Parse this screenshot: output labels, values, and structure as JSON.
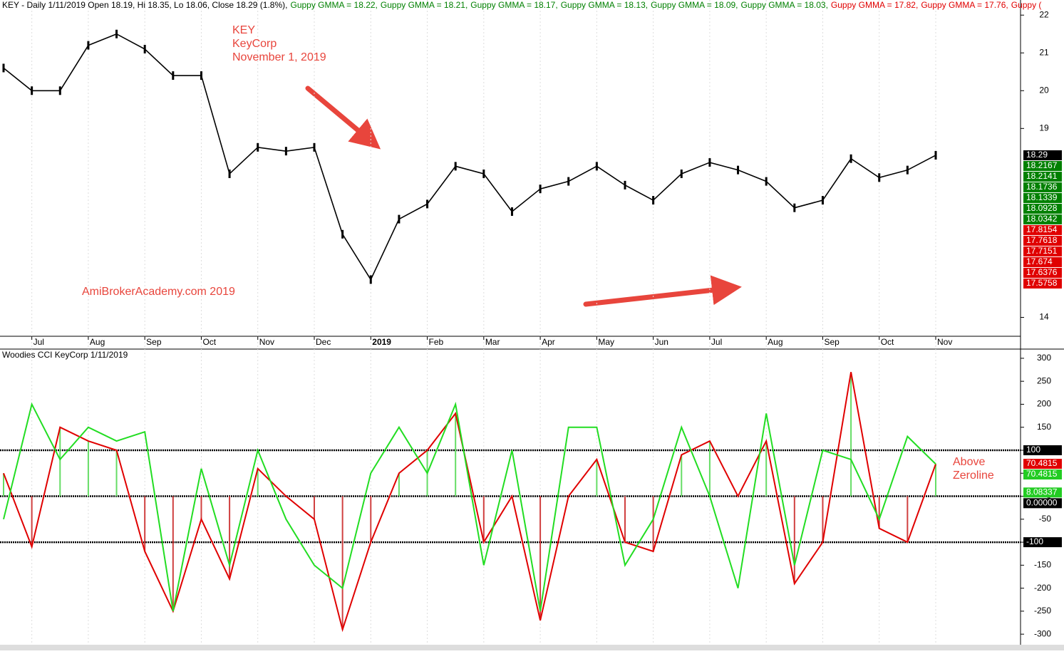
{
  "chart_data": [
    {
      "type": "line",
      "title": "KEY - Daily 1/11/2019 Open 18.19, Hi 18.35, Lo 18.06, Close 18.29 (1.8%),",
      "header_items": [
        {
          "text": "Guppy GMMA = 18.22,",
          "color": "#008000"
        },
        {
          "text": "Guppy GMMA = 18.21,",
          "color": "#008000"
        },
        {
          "text": "Guppy GMMA = 18.17,",
          "color": "#008000"
        },
        {
          "text": "Guppy GMMA = 18.13,",
          "color": "#008000"
        },
        {
          "text": "Guppy GMMA = 18.09,",
          "color": "#008000"
        },
        {
          "text": "Guppy GMMA = 18.03,",
          "color": "#008000"
        },
        {
          "text": "Guppy GMMA = 17.82,",
          "color": "#e00000"
        },
        {
          "text": "Guppy GMMA = 17.76,",
          "color": "#e00000"
        },
        {
          "text": "Guppy (",
          "color": "#e00000"
        }
      ],
      "annotations": [
        "KEY",
        "KeyCorp",
        "November 1, 2019",
        "AmiBrokerAcademy.com   2019"
      ],
      "categories": [
        null,
        "Jul",
        null,
        "Aug",
        null,
        "Sep",
        null,
        "Oct",
        null,
        "Nov",
        null,
        "Dec",
        null,
        "2019",
        null,
        "Feb",
        null,
        "Mar",
        null,
        "Apr",
        null,
        "May",
        null,
        "Jun",
        null,
        "Jul",
        null,
        "Aug",
        null,
        "Sep",
        null,
        "Oct",
        null,
        "Nov"
      ],
      "values": [
        20.6,
        20.0,
        20.0,
        21.2,
        21.5,
        21.1,
        20.4,
        20.4,
        17.8,
        18.5,
        18.4,
        18.5,
        16.2,
        15.0,
        16.6,
        17.0,
        18.0,
        17.8,
        16.8,
        17.4,
        17.6,
        18.0,
        17.5,
        17.1,
        17.8,
        18.1,
        17.9,
        17.6,
        16.9,
        17.1,
        18.2,
        17.7,
        17.9,
        18.29
      ],
      "color": "#000000",
      "ylim": [
        13.5,
        22.4
      ],
      "yticks": [
        14,
        19,
        20,
        21,
        22
      ],
      "price_labels": [
        {
          "value": 18.29,
          "color": "#000000"
        },
        {
          "value": 18.2167,
          "color": "#008000"
        },
        {
          "value": 18.2141,
          "color": "#008000"
        },
        {
          "value": 18.1736,
          "color": "#008000"
        },
        {
          "value": 18.1339,
          "color": "#008000"
        },
        {
          "value": 18.0928,
          "color": "#008000"
        },
        {
          "value": 18.0342,
          "color": "#008000"
        },
        {
          "value": 17.8154,
          "color": "#e00000"
        },
        {
          "value": 17.7618,
          "color": "#e00000"
        },
        {
          "value": 17.7151,
          "color": "#e00000"
        },
        {
          "value": 17.674,
          "color": "#e00000"
        },
        {
          "value": 17.6376,
          "color": "#e00000"
        },
        {
          "value": 17.5758,
          "color": "#e00000"
        }
      ]
    },
    {
      "type": "cci",
      "title": "Woodies CCI  KeyCorp 1/11/2019",
      "annotations": [
        "Above",
        "Zeroline"
      ],
      "series": [
        {
          "color": "#e00000",
          "values": [
            50,
            -110,
            150,
            120,
            100,
            -120,
            -250,
            -50,
            -180,
            60,
            0,
            -50,
            -290,
            -100,
            50,
            100,
            180,
            -100,
            0,
            -270,
            0,
            80,
            -100,
            -120,
            90,
            120,
            0,
            120,
            -190,
            -100,
            270,
            -70,
            -100,
            70
          ]
        },
        {
          "color": "#22dd22",
          "values": [
            -50,
            200,
            80,
            150,
            120,
            140,
            -250,
            60,
            -150,
            100,
            -50,
            -150,
            -200,
            50,
            150,
            50,
            200,
            -150,
            100,
            -250,
            150,
            150,
            -150,
            -50,
            150,
            0,
            -200,
            180,
            -150,
            100,
            80,
            -50,
            130,
            70
          ]
        }
      ],
      "ylim": [
        -323,
        320
      ],
      "yticks": [
        -300,
        -250,
        -200,
        -150,
        -100,
        -50,
        0,
        50,
        100,
        150,
        200,
        250,
        300
      ],
      "hlines": [
        100,
        0,
        -100
      ],
      "value_tags": [
        {
          "value": 100,
          "color": "#000000"
        },
        {
          "value": 70.4815,
          "color": "#e00000"
        },
        {
          "value": 70.4815,
          "color": "#22cc22"
        },
        {
          "value": 8.08337,
          "color": "#22cc22"
        },
        {
          "value": {
            "value": 0,
            "label": "0.00000"
          },
          "color": "#000000"
        },
        {
          "value": -100,
          "color": "#000000"
        }
      ]
    }
  ]
}
